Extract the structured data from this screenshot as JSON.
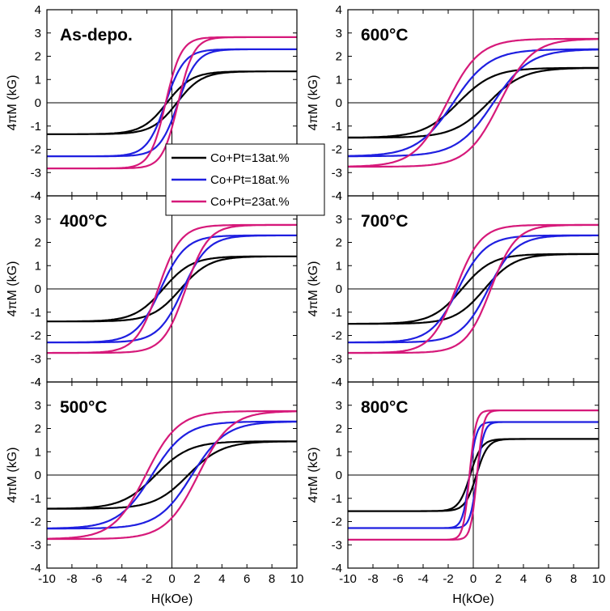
{
  "chart_data": {
    "type": "line",
    "description_free": true,
    "xlabel": "H(kOe)",
    "ylabel": "4πM (kG)",
    "xlim": [
      -10,
      10
    ],
    "ylim": [
      -4,
      4
    ],
    "xticks": [
      "-10",
      "-8",
      "-6",
      "-4",
      "-2",
      "0",
      "2",
      "4",
      "6",
      "8",
      "10"
    ],
    "yticks": [
      "4",
      "3",
      "2",
      "1",
      "0",
      "-1",
      "-2",
      "-3",
      "-4"
    ],
    "legend": [
      {
        "name": "Co+Pt=13at.%",
        "color": "#000000"
      },
      {
        "name": "Co+Pt=18at.%",
        "color": "#1f1fe0"
      },
      {
        "name": "Co+Pt=23at.%",
        "color": "#d6197a"
      }
    ],
    "panels": [
      {
        "label": "As-depo.",
        "series": [
          {
            "name": "Co+Pt=13at.%",
            "ms": 1.35,
            "hc": 0.4,
            "w": 2.0
          },
          {
            "name": "Co+Pt=18at.%",
            "ms": 2.3,
            "hc": 0.5,
            "w": 1.5
          },
          {
            "name": "Co+Pt=23at.%",
            "ms": 2.82,
            "hc": 0.5,
            "w": 1.25
          }
        ]
      },
      {
        "label": "600°C",
        "series": [
          {
            "name": "Co+Pt=13at.%",
            "ms": 1.5,
            "hc": 1.2,
            "w": 2.8
          },
          {
            "name": "Co+Pt=18at.%",
            "ms": 2.3,
            "hc": 1.6,
            "w": 2.9
          },
          {
            "name": "Co+Pt=23at.%",
            "ms": 2.75,
            "hc": 2.1,
            "w": 2.6
          }
        ]
      },
      {
        "label": "400°C",
        "series": [
          {
            "name": "Co+Pt=13at.%",
            "ms": 1.4,
            "hc": 0.7,
            "w": 2.3
          },
          {
            "name": "Co+Pt=18at.%",
            "ms": 2.3,
            "hc": 0.9,
            "w": 2.0
          },
          {
            "name": "Co+Pt=23at.%",
            "ms": 2.75,
            "hc": 1.1,
            "w": 1.8
          }
        ]
      },
      {
        "label": "700°C",
        "series": [
          {
            "name": "Co+Pt=13at.%",
            "ms": 1.5,
            "hc": 0.9,
            "w": 2.4
          },
          {
            "name": "Co+Pt=18at.%",
            "ms": 2.3,
            "hc": 1.2,
            "w": 2.2
          },
          {
            "name": "Co+Pt=23at.%",
            "ms": 2.75,
            "hc": 1.4,
            "w": 2.0
          }
        ]
      },
      {
        "label": "500°C",
        "series": [
          {
            "name": "Co+Pt=13at.%",
            "ms": 1.45,
            "hc": 1.3,
            "w": 2.7
          },
          {
            "name": "Co+Pt=18at.%",
            "ms": 2.3,
            "hc": 1.6,
            "w": 2.7
          },
          {
            "name": "Co+Pt=23at.%",
            "ms": 2.75,
            "hc": 2.1,
            "w": 2.6
          }
        ]
      },
      {
        "label": "800°C",
        "series": [
          {
            "name": "Co+Pt=13at.%",
            "ms": 1.55,
            "hc": 0.25,
            "w": 0.9
          },
          {
            "name": "Co+Pt=18at.%",
            "ms": 2.28,
            "hc": 0.3,
            "w": 0.55
          },
          {
            "name": "Co+Pt=23at.%",
            "ms": 2.78,
            "hc": 0.3,
            "w": 0.5
          }
        ]
      }
    ]
  }
}
